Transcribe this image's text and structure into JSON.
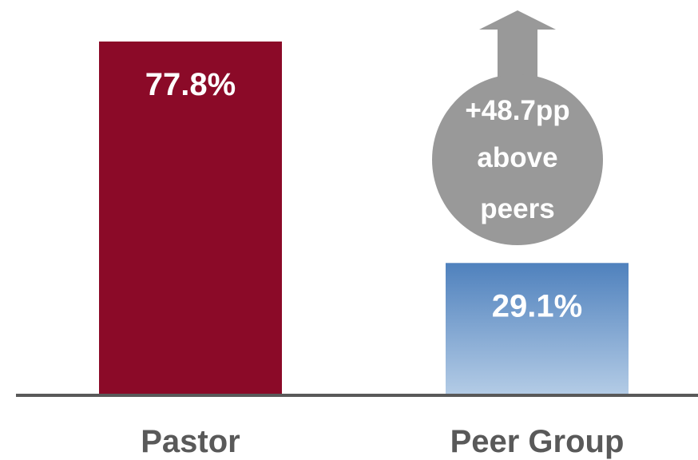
{
  "chart_data": {
    "type": "bar",
    "categories": [
      "Pastor",
      "Peer Group"
    ],
    "values": [
      77.8,
      29.1
    ],
    "value_labels": [
      "77.8%",
      "29.1%"
    ],
    "ylim": [
      0,
      80
    ],
    "grid": false,
    "legend": "none",
    "colors": {
      "pastor_bar": "#8B0A28",
      "peer_bar_top": "#4F81BD",
      "peer_bar_bottom": "#B4CCE6",
      "callout": "#999999",
      "axis": "#595959",
      "label_text": "#595959"
    },
    "callout": {
      "lines": [
        "+48.7pp",
        "above",
        "peers"
      ],
      "difference": 48.7,
      "shape": "arrow-up"
    }
  }
}
